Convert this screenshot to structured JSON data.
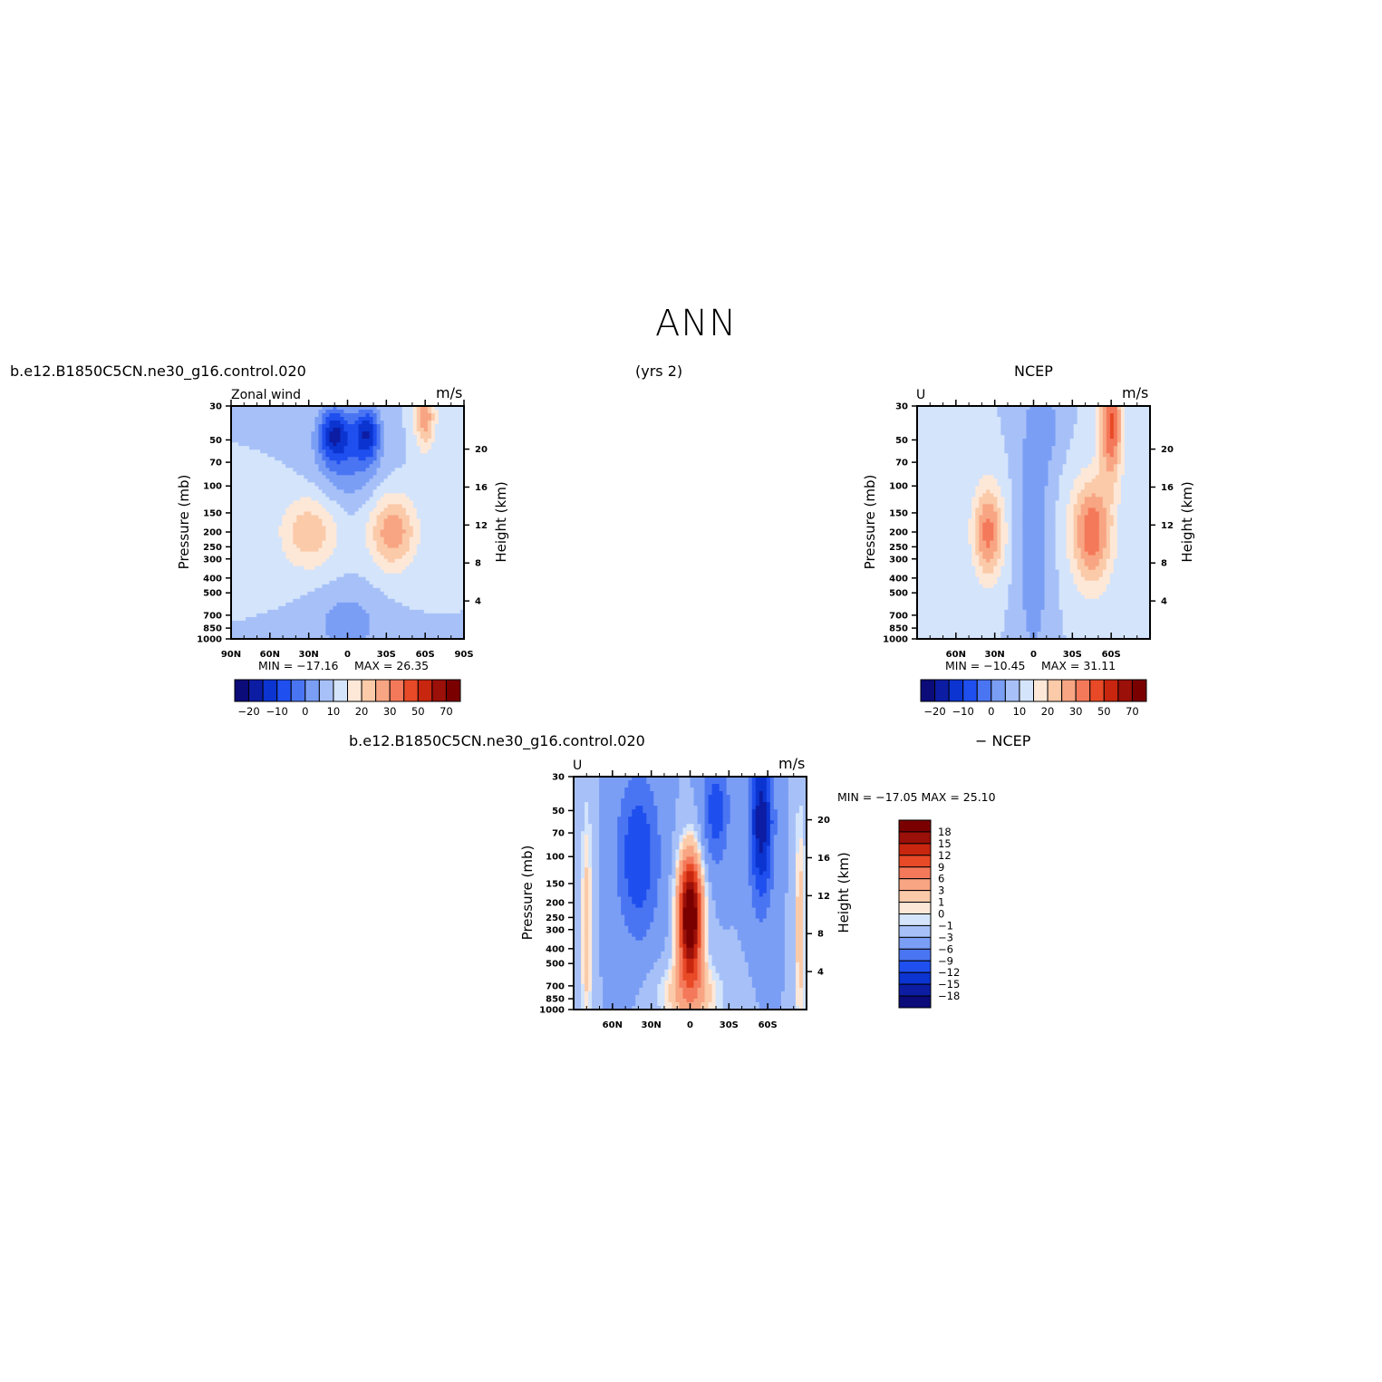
{
  "figure": {
    "title": "ANN"
  },
  "colors": {
    "levels": [
      "#0b0b7a",
      "#0c1da4",
      "#0b34d0",
      "#1f4fee",
      "#4a75f2",
      "#7b9ef5",
      "#a7c1f8",
      "#d4e4fb",
      "#fde8d8",
      "#fbcaa9",
      "#f8a583",
      "#f4795a",
      "#e84a27",
      "#c8260f",
      "#9b1009",
      "#7a0000"
    ],
    "diff_levels": [
      "#0b0b7a",
      "#0c1da4",
      "#0b34d0",
      "#1f4fee",
      "#4a75f2",
      "#7b9ef5",
      "#a7c1f8",
      "#d4e4fb",
      "#fde8d8",
      "#fbcaa9",
      "#f8a583",
      "#f4795a",
      "#e84a27",
      "#c8260f",
      "#9b1009",
      "#7a0000"
    ]
  },
  "chart_data": [
    {
      "type": "heatmap",
      "panel": "model",
      "case_name": "b.e12.B1850C5CN.ne30_g16.control.020",
      "years": "(yrs 2)",
      "title_left": "Zonal wind",
      "units": "m/s",
      "ylabel": "Pressure (mb)",
      "ylabel_right": "Height (km)",
      "x_ticks": [
        "90N",
        "60N",
        "30N",
        "0",
        "30S",
        "60S",
        "90S"
      ],
      "y_ticks": [
        "30",
        "50",
        "70",
        "100",
        "150",
        "200",
        "250",
        "300",
        "400",
        "500",
        "700",
        "850",
        "1000"
      ],
      "right_ticks": [
        "20",
        "16",
        "12",
        "8",
        "4"
      ],
      "xlim": [
        "90N",
        "90S"
      ],
      "ylim": [
        1000,
        30
      ],
      "min": -17.16,
      "max": 26.35,
      "min_label": "MIN = −17.16",
      "max_label": "MAX =   26.35",
      "colorbar_labels": [
        "−20",
        "−10",
        "0",
        "10",
        "20",
        "30",
        "50",
        "70"
      ],
      "features": [
        {
          "lat": -40,
          "p": 200,
          "u": 26.35
        },
        {
          "lat": 30,
          "p": 200,
          "u": 22
        },
        {
          "lat": 10,
          "p": 50,
          "u": -17.16
        },
        {
          "lat": -15,
          "p": 50,
          "u": -16
        }
      ]
    },
    {
      "type": "heatmap",
      "panel": "obs",
      "case_name": "NCEP",
      "title_left": "U",
      "units": "m/s",
      "ylabel": "Pressure (mb)",
      "ylabel_right": "Height (km)",
      "x_ticks": [
        "60N",
        "30N",
        "0",
        "30S",
        "60S"
      ],
      "y_ticks": [
        "30",
        "50",
        "70",
        "100",
        "150",
        "200",
        "250",
        "300",
        "400",
        "500",
        "700",
        "850",
        "1000"
      ],
      "right_ticks": [
        "20",
        "16",
        "12",
        "8",
        "4"
      ],
      "xlim": [
        "90N",
        "90S"
      ],
      "ylim": [
        1000,
        30
      ],
      "min": -10.45,
      "max": 31.11,
      "min_label": "MIN = −10.45",
      "max_label": "MAX =   31.11",
      "colorbar_labels": [
        "−20",
        "−10",
        "0",
        "10",
        "20",
        "30",
        "50",
        "70"
      ],
      "features": [
        {
          "lat": -60,
          "p": 40,
          "u": 31.11
        },
        {
          "lat": 35,
          "p": 200,
          "u": 25
        },
        {
          "lat": 5,
          "p": 50,
          "u": -10.45
        }
      ]
    },
    {
      "type": "heatmap",
      "panel": "difference",
      "case_name": "b.e12.B1850C5CN.ne30_g16.control.020",
      "minus_label": "− NCEP",
      "title_left": "U",
      "units": "m/s",
      "ylabel": "Pressure (mb)",
      "ylabel_right": "Height (km)",
      "x_ticks": [
        "60N",
        "30N",
        "0",
        "30S",
        "60S"
      ],
      "y_ticks": [
        "30",
        "50",
        "70",
        "100",
        "150",
        "200",
        "250",
        "300",
        "400",
        "500",
        "700",
        "850",
        "1000"
      ],
      "right_ticks": [
        "20",
        "16",
        "12",
        "8",
        "4"
      ],
      "xlim": [
        "90N",
        "90S"
      ],
      "ylim": [
        1000,
        30
      ],
      "min": -17.05,
      "max": 25.1,
      "stats_label": "MIN = −17.05   MAX =   25.10",
      "colorbar_labels": [
        "18",
        "15",
        "12",
        "9",
        "6",
        "3",
        "1",
        "0",
        "−1",
        "−3",
        "−6",
        "−9",
        "−12",
        "−15",
        "−18"
      ],
      "features": [
        {
          "lat": 0,
          "p": 250,
          "u": 25.1
        },
        {
          "lat": -55,
          "p": 60,
          "u": -17.05
        },
        {
          "lat": 40,
          "p": 100,
          "u": -12
        }
      ]
    }
  ]
}
